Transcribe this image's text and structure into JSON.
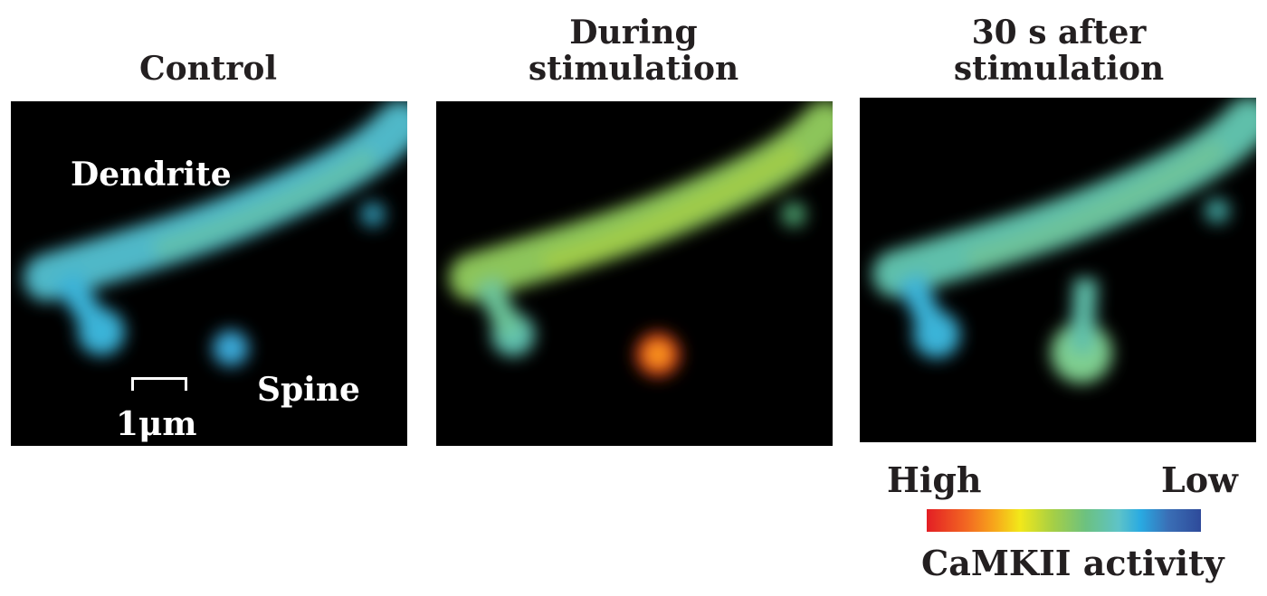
{
  "panels": [
    {
      "title": "Control",
      "labels": {
        "dendrite": "Dendrite",
        "spine": "Spine",
        "scale": "1μm"
      },
      "spine_color": "#3aa7d6"
    },
    {
      "title_line1": "During",
      "title_line2": "stimulation",
      "spine_color": "#f04a1a"
    },
    {
      "title_line1": "30 s after",
      "title_line2": "stimulation",
      "spine_color": "#7fcf8f"
    }
  ],
  "legend": {
    "high": "High",
    "low": "Low",
    "caption": "CaMKII activity",
    "scale_colors": [
      "#e31e24",
      "#f26522",
      "#f7a21b",
      "#f2e81a",
      "#a6cf45",
      "#6cc180",
      "#5ec3c8",
      "#29aae2",
      "#3a6fb6",
      "#2e4a9a"
    ]
  }
}
